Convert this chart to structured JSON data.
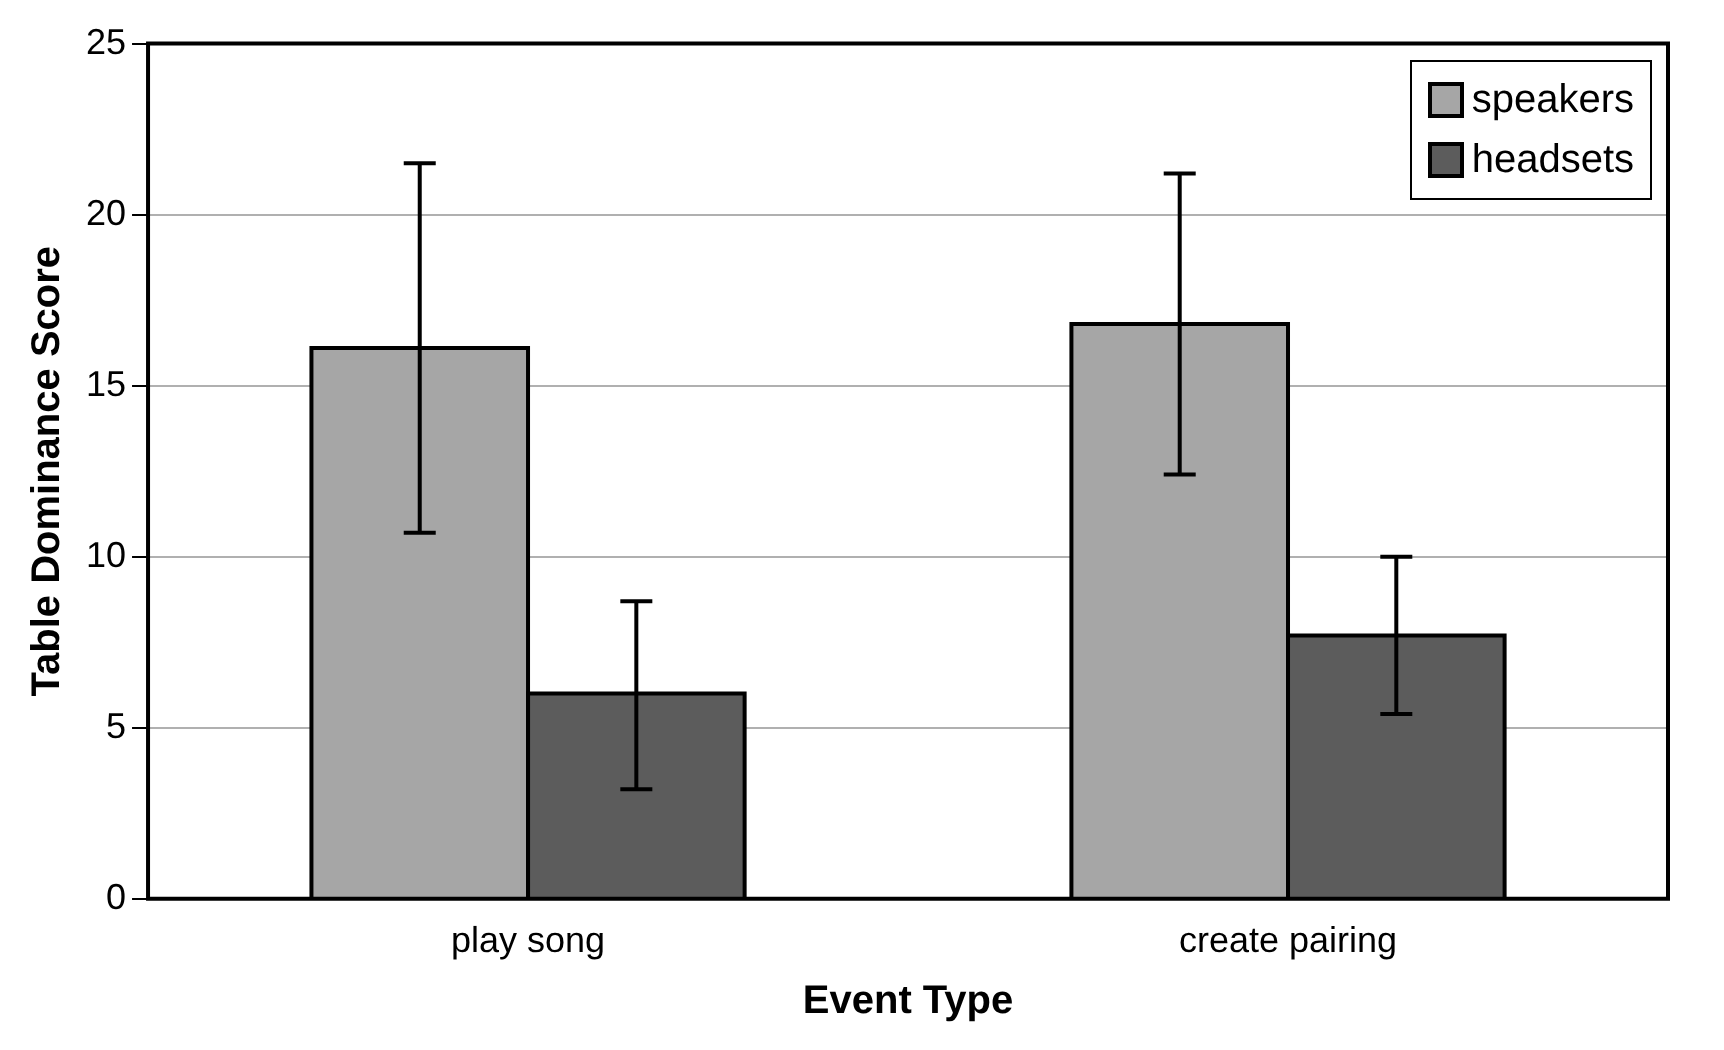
{
  "chart_data": {
    "type": "bar",
    "xlabel": "Event Type",
    "ylabel": "Table Dominance Score",
    "categories": [
      "play song",
      "create pairing"
    ],
    "series": [
      {
        "name": "speakers",
        "color": "#a6a6a6",
        "values": [
          16.1,
          16.8
        ],
        "errors": [
          [
            10.7,
            21.5
          ],
          [
            12.4,
            21.2
          ]
        ]
      },
      {
        "name": "headsets",
        "color": "#5c5c5c",
        "values": [
          6.0,
          7.7
        ],
        "errors": [
          [
            3.2,
            8.7
          ],
          [
            5.4,
            10.0
          ]
        ]
      }
    ],
    "ylim": [
      0,
      25
    ],
    "yticks": [
      0,
      5,
      10,
      15,
      20,
      25
    ],
    "grid": "y",
    "legend": "top right"
  }
}
